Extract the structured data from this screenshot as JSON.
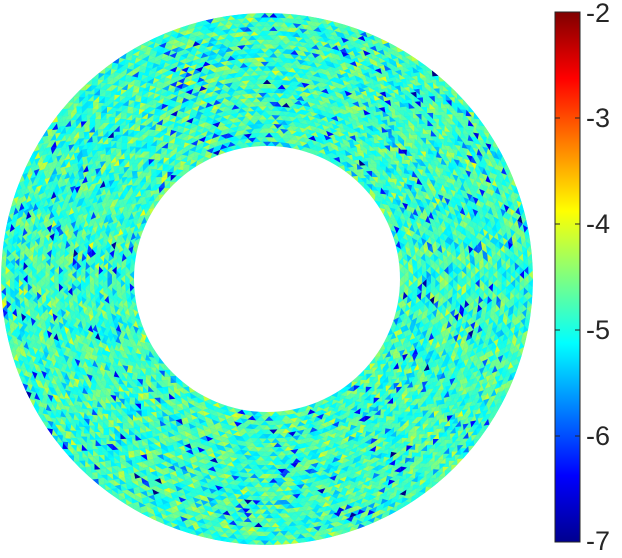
{
  "chart_data": {
    "type": "heatmap",
    "title": "",
    "xlabel": "",
    "ylabel": "",
    "domain_shape": "annulus",
    "inner_to_outer_radius_ratio": 0.5,
    "field": {
      "typical_value": -4.8,
      "spread": 0.45,
      "min_value": -7,
      "max_value": -3.6,
      "description_values": "error values mostly between -6 and -4, concentrated near -5"
    },
    "colorbar": {
      "colormap": "jet",
      "clim": [
        -7,
        -2
      ],
      "ticks": [
        -2,
        -3,
        -4,
        -5,
        -6,
        -7
      ],
      "tick_labels": [
        "-2",
        "-3",
        "-4",
        "-5",
        "-6",
        "-7"
      ],
      "placement": "right"
    },
    "grid": false
  }
}
